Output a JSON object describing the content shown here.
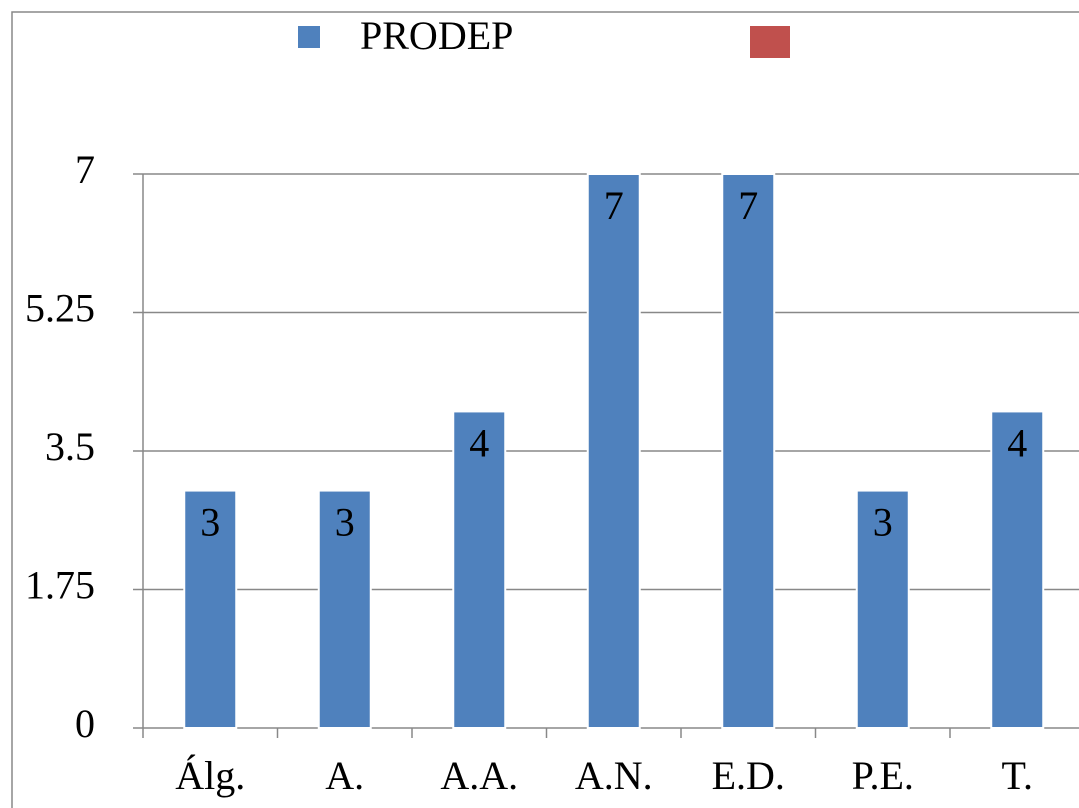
{
  "chart_data": {
    "type": "bar",
    "categories": [
      "Álg.",
      "A.",
      "A.A.",
      "A.N.",
      "E.D.",
      "P.E.",
      "T."
    ],
    "series": [
      {
        "name": "PRODEP",
        "color": "#4f81bd",
        "values": [
          3,
          3,
          4,
          7,
          7,
          3,
          4
        ]
      },
      {
        "name": null,
        "color": "#c0504d",
        "values": [
          null,
          null,
          null,
          null,
          null,
          null,
          null
        ]
      }
    ],
    "ylim": [
      0,
      7
    ],
    "yticks": [
      0,
      1.75,
      3.5,
      5.25,
      7
    ],
    "grid": true,
    "legend": "top"
  }
}
